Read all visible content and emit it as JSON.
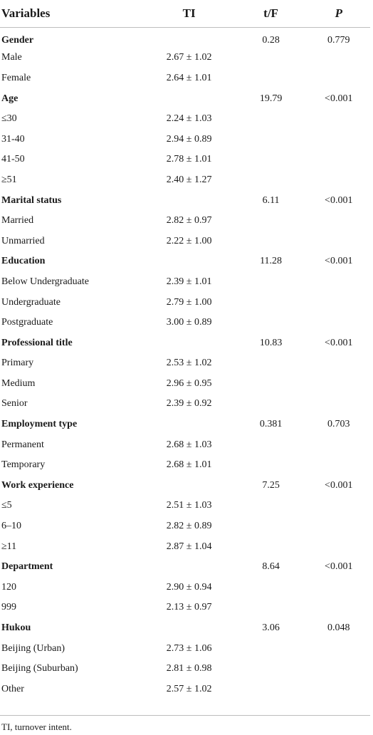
{
  "table": {
    "headers": {
      "variables": "Variables",
      "ti": "TI",
      "tf": "t/F",
      "p": "P"
    },
    "rows": [
      {
        "type": "group",
        "variable": "Gender",
        "ti": "",
        "tf": "0.28",
        "p": "0.779"
      },
      {
        "type": "item",
        "variable": "Male",
        "ti": "2.67 ± 1.02",
        "tf": "",
        "p": ""
      },
      {
        "type": "item",
        "variable": "Female",
        "ti": "2.64 ± 1.01",
        "tf": "",
        "p": ""
      },
      {
        "type": "group",
        "variable": "Age",
        "ti": "",
        "tf": "19.79",
        "p": "<0.001"
      },
      {
        "type": "item",
        "variable": "≤30",
        "ti": "2.24 ± 1.03",
        "tf": "",
        "p": ""
      },
      {
        "type": "item",
        "variable": "31-40",
        "ti": "2.94 ± 0.89",
        "tf": "",
        "p": ""
      },
      {
        "type": "item",
        "variable": "41-50",
        "ti": "2.78 ± 1.01",
        "tf": "",
        "p": ""
      },
      {
        "type": "item",
        "variable": "≥51",
        "ti": "2.40 ± 1.27",
        "tf": "",
        "p": ""
      },
      {
        "type": "group",
        "variable": "Marital status",
        "ti": "",
        "tf": "6.11",
        "p": "<0.001"
      },
      {
        "type": "item",
        "variable": "Married",
        "ti": "2.82 ± 0.97",
        "tf": "",
        "p": ""
      },
      {
        "type": "item",
        "variable": "Unmarried",
        "ti": "2.22 ± 1.00",
        "tf": "",
        "p": ""
      },
      {
        "type": "group",
        "variable": "Education",
        "ti": "",
        "tf": "11.28",
        "p": "<0.001"
      },
      {
        "type": "item",
        "variable": "Below Undergraduate",
        "ti": "2.39 ± 1.01",
        "tf": "",
        "p": ""
      },
      {
        "type": "item",
        "variable": "Undergraduate",
        "ti": "2.79 ± 1.00",
        "tf": "",
        "p": ""
      },
      {
        "type": "item",
        "variable": "Postgraduate",
        "ti": "3.00 ± 0.89",
        "tf": "",
        "p": ""
      },
      {
        "type": "group",
        "variable": "Professional title",
        "ti": "",
        "tf": "10.83",
        "p": "<0.001"
      },
      {
        "type": "item",
        "variable": "Primary",
        "ti": "2.53 ± 1.02",
        "tf": "",
        "p": ""
      },
      {
        "type": "item",
        "variable": "Medium",
        "ti": "2.96 ± 0.95",
        "tf": "",
        "p": ""
      },
      {
        "type": "item",
        "variable": "Senior",
        "ti": "2.39 ± 0.92",
        "tf": "",
        "p": ""
      },
      {
        "type": "group",
        "variable": "Employment type",
        "ti": "",
        "tf": "0.381",
        "p": "0.703"
      },
      {
        "type": "item",
        "variable": "Permanent",
        "ti": "2.68 ± 1.03",
        "tf": "",
        "p": ""
      },
      {
        "type": "item",
        "variable": "Temporary",
        "ti": "2.68 ± 1.01",
        "tf": "",
        "p": ""
      },
      {
        "type": "group",
        "variable": "Work experience",
        "ti": "",
        "tf": "7.25",
        "p": "<0.001"
      },
      {
        "type": "item",
        "variable": "≤5",
        "ti": "2.51 ± 1.03",
        "tf": "",
        "p": ""
      },
      {
        "type": "item",
        "variable": "6–10",
        "ti": "2.82 ± 0.89",
        "tf": "",
        "p": ""
      },
      {
        "type": "item",
        "variable": "≥11",
        "ti": "2.87 ± 1.04",
        "tf": "",
        "p": ""
      },
      {
        "type": "group",
        "variable": " Department",
        "ti": "",
        "tf": "8.64",
        "p": "<0.001"
      },
      {
        "type": "item",
        "variable": "120",
        "ti": "2.90 ± 0.94",
        "tf": "",
        "p": ""
      },
      {
        "type": "item",
        "variable": "999",
        "ti": "2.13 ± 0.97",
        "tf": "",
        "p": ""
      },
      {
        "type": "group",
        "variable": "Hukou",
        "ti": "",
        "tf": "3.06",
        "p": "0.048"
      },
      {
        "type": "item",
        "variable": "Beijing (Urban)",
        "ti": "2.73 ± 1.06",
        "tf": "",
        "p": ""
      },
      {
        "type": "item",
        "variable": "Beijing (Suburban)",
        "ti": "2.81 ± 0.98",
        "tf": "",
        "p": ""
      },
      {
        "type": "item",
        "variable": "Other",
        "ti": "2.57 ± 1.02",
        "tf": "",
        "p": ""
      }
    ]
  },
  "footnote": "TI, turnover intent."
}
